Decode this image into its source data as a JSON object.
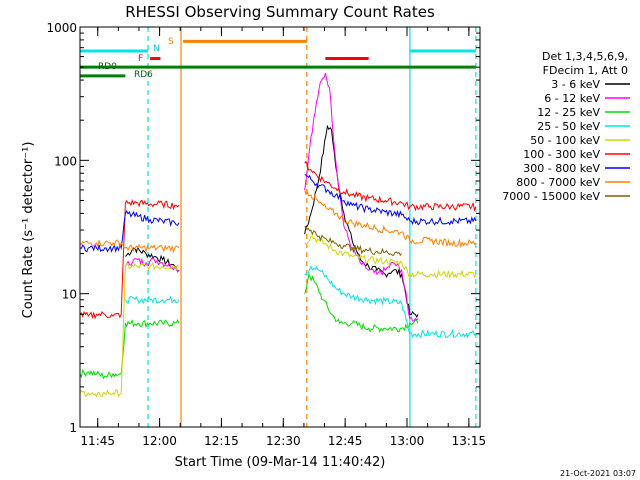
{
  "chart_data": {
    "type": "line",
    "title": "RHESSI Observing Summary Count Rates",
    "xlabel": "Start Time (09-Mar-14 11:40:42)",
    "ylabel": "Count Rate (s⁻¹ detector⁻¹)",
    "yscale": "log",
    "ylim": [
      1,
      1000
    ],
    "xlim_minutes": [
      0,
      97
    ],
    "x_ticks": [
      {
        "label": "11:45",
        "t": 4.3
      },
      {
        "label": "12:00",
        "t": 19.3
      },
      {
        "label": "12:15",
        "t": 34.3
      },
      {
        "label": "12:30",
        "t": 49.3
      },
      {
        "label": "12:45",
        "t": 64.3
      },
      {
        "label": "13:00",
        "t": 79.3
      },
      {
        "label": "13:15",
        "t": 94.3
      }
    ],
    "y_ticks": [
      {
        "label": "1",
        "v": 1
      },
      {
        "label": "10",
        "v": 10
      },
      {
        "label": "100",
        "v": 100
      },
      {
        "label": "1000",
        "v": 1000
      }
    ],
    "legend": {
      "header": [
        "Det 1,3,4,5,6,9,",
        "FDecim 1, Att 0"
      ],
      "placement": "right",
      "entries": [
        {
          "label": "3 - 6 keV",
          "color": "#000000"
        },
        {
          "label": "6 - 12 keV",
          "color": "#ff00ff"
        },
        {
          "label": "12 - 25 keV",
          "color": "#00dd00"
        },
        {
          "label": "25 - 50 keV",
          "color": "#00e5e5"
        },
        {
          "label": "50 - 100 keV",
          "color": "#d4d400"
        },
        {
          "label": "100 - 300 keV",
          "color": "#ff0000"
        },
        {
          "label": "300 - 800 keV",
          "color": "#0000ff"
        },
        {
          "label": "800 - 7000 keV",
          "color": "#ff8000"
        },
        {
          "label": "7000 - 15000 keV",
          "color": "#806000"
        }
      ]
    },
    "flag_labels": [
      {
        "label": "RD0",
        "color": "#006400"
      },
      {
        "label": "RD6",
        "color": "#006400"
      },
      {
        "label": "F",
        "color": "#ff0000"
      },
      {
        "label": "N",
        "color": "#00cccc"
      },
      {
        "label": "S",
        "color": "#ff8000"
      }
    ],
    "flag_bars": [
      {
        "name": "saa-cyan-1",
        "color": "#00e5e5",
        "t0": 0,
        "t1": 16.5,
        "level": 660
      },
      {
        "name": "saa-cyan-2",
        "color": "#00e5e5",
        "t0": 80,
        "t1": 96,
        "level": 660
      },
      {
        "name": "saa-orange",
        "color": "#ff8000",
        "t0": 25,
        "t1": 55,
        "level": 780
      },
      {
        "name": "flare-red-1",
        "color": "#ff0000",
        "t0": 17,
        "t1": 19.5,
        "level": 580
      },
      {
        "name": "flare-red-2",
        "color": "#ff0000",
        "t0": 59.5,
        "t1": 70,
        "level": 580
      },
      {
        "name": "rd0-green",
        "color": "#008000",
        "t0": 0,
        "t1": 96,
        "level": 500
      },
      {
        "name": "rd6-green",
        "color": "#008000",
        "t0": 0,
        "t1": 11,
        "level": 430
      }
    ],
    "vertical_markers": [
      {
        "name": "night-start",
        "color": "#00e5e5",
        "style": "dashed",
        "t": 16.5
      },
      {
        "name": "saa-start",
        "color": "#ff8000",
        "style": "solid",
        "t": 24.5
      },
      {
        "name": "saa-end",
        "color": "#ff8000",
        "style": "dashed",
        "t": 55
      },
      {
        "name": "night-end",
        "color": "#00e5e5",
        "style": "solid",
        "t": 80
      },
      {
        "name": "night-start-2",
        "color": "#00e5e5",
        "style": "dashed",
        "t": 96
      }
    ],
    "series": [
      {
        "name": "3 - 6 keV",
        "color": "#000000",
        "points": [
          [
            11,
            19
          ],
          [
            13,
            22
          ],
          [
            16,
            20
          ],
          [
            18,
            19
          ],
          [
            20,
            18
          ],
          [
            23,
            16
          ],
          [
            24,
            15
          ],
          [
            54.5,
            28
          ],
          [
            56,
            40
          ],
          [
            58,
            75
          ],
          [
            60,
            180
          ],
          [
            61,
            170
          ],
          [
            62,
            90
          ],
          [
            64,
            40
          ],
          [
            66,
            25
          ],
          [
            68,
            18
          ],
          [
            70,
            16
          ],
          [
            72,
            15
          ],
          [
            74,
            14
          ],
          [
            76,
            15
          ],
          [
            78,
            14
          ],
          [
            80,
            7
          ],
          [
            82,
            7
          ]
        ]
      },
      {
        "name": "6 - 12 keV",
        "color": "#ff00ff",
        "points": [
          [
            11,
            16
          ],
          [
            13,
            18
          ],
          [
            16,
            17
          ],
          [
            18,
            18
          ],
          [
            20,
            17
          ],
          [
            23,
            16
          ],
          [
            24,
            15
          ],
          [
            54.5,
            60
          ],
          [
            56,
            150
          ],
          [
            58,
            350
          ],
          [
            59.5,
            450
          ],
          [
            60.5,
            350
          ],
          [
            62,
            100
          ],
          [
            64,
            32
          ],
          [
            66,
            22
          ],
          [
            68,
            17
          ],
          [
            70,
            15
          ],
          [
            72,
            14
          ],
          [
            74,
            15
          ],
          [
            76,
            17
          ],
          [
            78,
            15
          ],
          [
            80,
            6.5
          ],
          [
            82,
            6.5
          ]
        ]
      },
      {
        "name": "12 - 25 keV",
        "color": "#00dd00",
        "points": [
          [
            0,
            2.5
          ],
          [
            2,
            2.6
          ],
          [
            4,
            2.5
          ],
          [
            6,
            2.4
          ],
          [
            8,
            2.5
          ],
          [
            10,
            2.5
          ],
          [
            11,
            6
          ],
          [
            14,
            6
          ],
          [
            17,
            6
          ],
          [
            20,
            6
          ],
          [
            23,
            6
          ],
          [
            24,
            6
          ],
          [
            54.5,
            10
          ],
          [
            55.5,
            14
          ],
          [
            57,
            12
          ],
          [
            59,
            9
          ],
          [
            61,
            7
          ],
          [
            63,
            6
          ],
          [
            66,
            6
          ],
          [
            70,
            5.5
          ],
          [
            74,
            5.5
          ],
          [
            78,
            5.5
          ],
          [
            80,
            6
          ],
          [
            82,
            6
          ]
        ]
      },
      {
        "name": "25 - 50 keV",
        "color": "#00e5e5",
        "points": [
          [
            11,
            9
          ],
          [
            14,
            9
          ],
          [
            17,
            9
          ],
          [
            20,
            9
          ],
          [
            23,
            9
          ],
          [
            24,
            9
          ],
          [
            54.5,
            14
          ],
          [
            56,
            16
          ],
          [
            58,
            15
          ],
          [
            60,
            13
          ],
          [
            62,
            11
          ],
          [
            64,
            10
          ],
          [
            66,
            9.5
          ],
          [
            70,
            9
          ],
          [
            74,
            8.8
          ],
          [
            78,
            8.5
          ],
          [
            80,
            5
          ],
          [
            85,
            5
          ],
          [
            90,
            5
          ],
          [
            96,
            5
          ]
        ]
      },
      {
        "name": "50 - 100 keV",
        "color": "#d4d400",
        "points": [
          [
            0,
            1.8
          ],
          [
            2,
            1.8
          ],
          [
            4,
            1.7
          ],
          [
            6,
            1.8
          ],
          [
            8,
            1.8
          ],
          [
            10,
            1.8
          ],
          [
            11,
            16
          ],
          [
            14,
            16
          ],
          [
            17,
            16
          ],
          [
            20,
            16
          ],
          [
            23,
            16
          ],
          [
            24,
            16
          ],
          [
            54.5,
            24
          ],
          [
            56,
            27
          ],
          [
            58,
            25
          ],
          [
            60,
            23
          ],
          [
            62,
            21
          ],
          [
            64,
            20
          ],
          [
            66,
            19
          ],
          [
            70,
            18
          ],
          [
            74,
            17.5
          ],
          [
            78,
            17
          ],
          [
            80,
            14
          ],
          [
            85,
            14
          ],
          [
            90,
            14
          ],
          [
            96,
            14
          ]
        ]
      },
      {
        "name": "100 - 300 keV",
        "color": "#ff0000",
        "points": [
          [
            0,
            7
          ],
          [
            2,
            6.8
          ],
          [
            4,
            7
          ],
          [
            6,
            7
          ],
          [
            8,
            6.8
          ],
          [
            10,
            7
          ],
          [
            11,
            48
          ],
          [
            14,
            48
          ],
          [
            17,
            47
          ],
          [
            20,
            47
          ],
          [
            23,
            46
          ],
          [
            24,
            46
          ],
          [
            54.5,
            95
          ],
          [
            56,
            85
          ],
          [
            58,
            75
          ],
          [
            60,
            68
          ],
          [
            62,
            62
          ],
          [
            64,
            58
          ],
          [
            66,
            55
          ],
          [
            70,
            52
          ],
          [
            74,
            50
          ],
          [
            78,
            48
          ],
          [
            80,
            45
          ],
          [
            85,
            45
          ],
          [
            90,
            45
          ],
          [
            96,
            45
          ]
        ]
      },
      {
        "name": "300 - 800 keV",
        "color": "#0000ff",
        "points": [
          [
            0,
            22
          ],
          [
            2,
            22
          ],
          [
            4,
            22
          ],
          [
            6,
            22
          ],
          [
            8,
            22
          ],
          [
            10,
            22
          ],
          [
            11,
            40
          ],
          [
            14,
            38
          ],
          [
            17,
            36
          ],
          [
            20,
            35
          ],
          [
            23,
            34
          ],
          [
            24,
            34
          ],
          [
            54.5,
            78
          ],
          [
            56,
            72
          ],
          [
            58,
            65
          ],
          [
            60,
            60
          ],
          [
            62,
            55
          ],
          [
            64,
            50
          ],
          [
            66,
            46
          ],
          [
            70,
            43
          ],
          [
            74,
            41
          ],
          [
            78,
            39
          ],
          [
            80,
            35
          ],
          [
            85,
            35
          ],
          [
            90,
            35
          ],
          [
            96,
            35
          ]
        ]
      },
      {
        "name": "800 - 7000 keV",
        "color": "#ff8000",
        "points": [
          [
            0,
            24
          ],
          [
            2,
            24
          ],
          [
            4,
            24
          ],
          [
            6,
            24
          ],
          [
            8,
            24
          ],
          [
            10,
            24
          ],
          [
            11,
            22
          ],
          [
            14,
            22
          ],
          [
            17,
            22
          ],
          [
            20,
            22
          ],
          [
            23,
            22
          ],
          [
            24,
            22
          ],
          [
            54.5,
            60
          ],
          [
            56,
            55
          ],
          [
            58,
            48
          ],
          [
            60,
            43
          ],
          [
            62,
            40
          ],
          [
            64,
            36
          ],
          [
            66,
            34
          ],
          [
            70,
            32
          ],
          [
            74,
            30
          ],
          [
            78,
            29
          ],
          [
            80,
            25
          ],
          [
            85,
            25
          ],
          [
            90,
            24
          ],
          [
            96,
            24
          ]
        ]
      },
      {
        "name": "7000 - 15000 keV",
        "color": "#806000",
        "points": [
          [
            54.5,
            32
          ],
          [
            56,
            30
          ],
          [
            58,
            27
          ],
          [
            60,
            25
          ],
          [
            62,
            24
          ],
          [
            64,
            23
          ],
          [
            66,
            22
          ],
          [
            70,
            21
          ],
          [
            74,
            20.5
          ],
          [
            78,
            20
          ]
        ]
      }
    ]
  },
  "footer": {
    "timestamp": "21-Oct-2021 03:07"
  }
}
